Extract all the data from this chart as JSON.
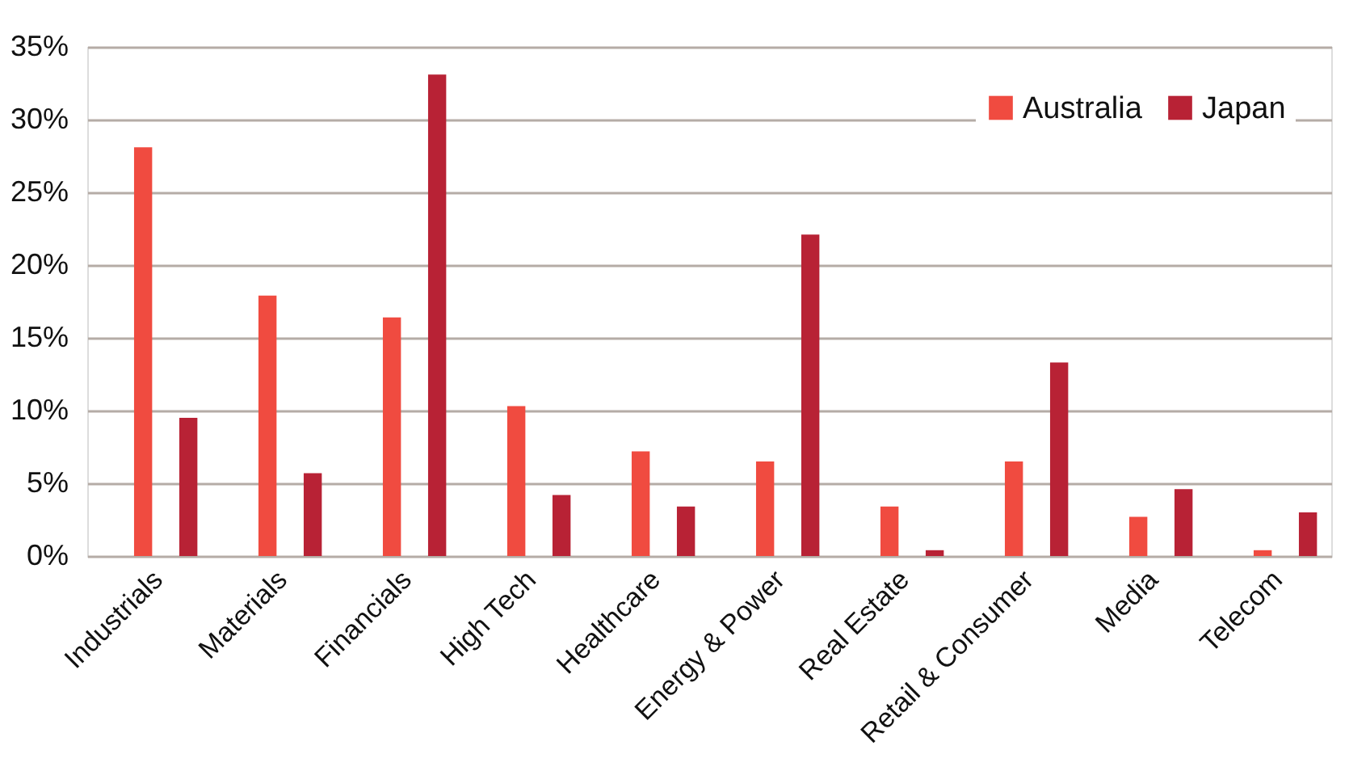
{
  "chart_data": {
    "type": "bar",
    "categories": [
      "Industrials",
      "Materials",
      "Financials",
      "High Tech",
      "Healthcare",
      "Energy & Power",
      "Real Estate",
      "Retail & Consumer",
      "Media",
      "Telecom"
    ],
    "series": [
      {
        "name": "Australia",
        "color": "#f04b40",
        "values": [
          28.1,
          17.9,
          16.4,
          10.3,
          7.2,
          6.5,
          3.4,
          6.5,
          2.7,
          0.4
        ]
      },
      {
        "name": "Japan",
        "color": "#b82235",
        "values": [
          9.5,
          5.7,
          33.1,
          4.2,
          3.4,
          22.1,
          0.4,
          13.3,
          4.6,
          3.0
        ]
      }
    ],
    "ylim": [
      0,
      35
    ],
    "yticks": [
      {
        "value": 0,
        "label": "0%"
      },
      {
        "value": 5,
        "label": "5%"
      },
      {
        "value": 10,
        "label": "10%"
      },
      {
        "value": 15,
        "label": "15%"
      },
      {
        "value": 20,
        "label": "20%"
      },
      {
        "value": 25,
        "label": "25%"
      },
      {
        "value": 30,
        "label": "30%"
      },
      {
        "value": 35,
        "label": "35%"
      }
    ],
    "grid": "y",
    "legend": "top right"
  }
}
